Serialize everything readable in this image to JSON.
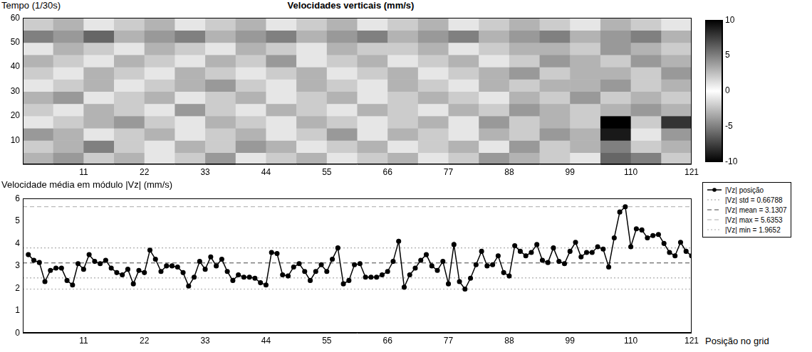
{
  "chart_data": [
    {
      "type": "heatmap",
      "title": "Velocidades verticais (mm/s)",
      "y_label": "Tempo (1/30s)",
      "xlim": [
        0,
        121
      ],
      "xticks": [
        11,
        22,
        33,
        44,
        55,
        66,
        77,
        88,
        99,
        110,
        121
      ],
      "ylim": [
        0,
        60
      ],
      "yticks": [
        10,
        20,
        30,
        40,
        50,
        60
      ],
      "x_edges": [
        0,
        5.5,
        11,
        16.5,
        22,
        27.5,
        33,
        38.5,
        44,
        49.5,
        55,
        60.5,
        66,
        71.5,
        77,
        82.5,
        88,
        93.5,
        99,
        104.5,
        110,
        115.5,
        121
      ],
      "y_edges": [
        0,
        5,
        10,
        15,
        20,
        25,
        30,
        35,
        40,
        45,
        50,
        55,
        60
      ],
      "cells": [
        [
          3,
          -4,
          2,
          -3,
          1,
          -2,
          4,
          -1,
          2,
          -3,
          1,
          -2,
          3,
          -1,
          2,
          -4,
          3,
          -2,
          1,
          -6,
          -5,
          2
        ],
        [
          -2,
          3,
          -5,
          2,
          -1,
          3,
          -2,
          4,
          -3,
          1,
          -2,
          3,
          -1,
          2,
          -3,
          1,
          -4,
          2,
          -3,
          -5,
          2,
          -3
        ],
        [
          4,
          -3,
          1,
          -2,
          3,
          -1,
          2,
          -3,
          1,
          -2,
          4,
          -1,
          3,
          -2,
          1,
          -3,
          2,
          -4,
          3,
          -9,
          1,
          -4
        ],
        [
          -1,
          2,
          -3,
          4,
          -2,
          1,
          -3,
          2,
          -1,
          3,
          -2,
          1,
          -2,
          3,
          -1,
          4,
          -2,
          3,
          -2,
          -10,
          2,
          -8
        ],
        [
          2,
          -1,
          3,
          -2,
          1,
          -4,
          2,
          -1,
          3,
          -2,
          1,
          -3,
          2,
          -1,
          3,
          -2,
          4,
          -3,
          2,
          3,
          -4,
          3
        ],
        [
          -3,
          4,
          -1,
          2,
          -3,
          1,
          -2,
          3,
          -1,
          2,
          -3,
          1,
          -2,
          3,
          -2,
          1,
          -3,
          2,
          -4,
          2,
          3,
          -2
        ],
        [
          1,
          -2,
          3,
          -1,
          2,
          -3,
          4,
          -2,
          1,
          -3,
          2,
          -1,
          3,
          -2,
          1,
          -3,
          2,
          -3,
          3,
          -4,
          2,
          -3
        ],
        [
          -2,
          1,
          -3,
          2,
          -1,
          3,
          -2,
          1,
          -2,
          3,
          -1,
          2,
          -3,
          1,
          -2,
          3,
          -4,
          2,
          -3,
          3,
          -2,
          4
        ],
        [
          3,
          -2,
          1,
          -3,
          2,
          -1,
          3,
          -2,
          4,
          -1,
          2,
          -3,
          1,
          -2,
          3,
          -1,
          2,
          -4,
          3,
          -2,
          4,
          -3
        ],
        [
          -1,
          3,
          -2,
          1,
          -3,
          2,
          -1,
          3,
          -2,
          1,
          -3,
          2,
          -2,
          3,
          -1,
          2,
          -3,
          3,
          -2,
          4,
          -3,
          2
        ],
        [
          -5,
          4,
          -6,
          3,
          -4,
          5,
          -3,
          4,
          -5,
          3,
          -4,
          5,
          -3,
          4,
          -5,
          3,
          -4,
          5,
          -3,
          4,
          -5,
          3
        ],
        [
          2,
          -3,
          1,
          -2,
          3,
          -1,
          2,
          -3,
          1,
          -2,
          3,
          -1,
          2,
          -3,
          1,
          -2,
          3,
          -2,
          1,
          -3,
          2,
          -1
        ]
      ],
      "colorbar": {
        "range": [
          -10,
          10
        ],
        "ticks": [
          -10,
          -5,
          0,
          5,
          10
        ]
      }
    },
    {
      "type": "line",
      "title": "Velocidade média em módulo |Vz| (mm/s)",
      "x_label": "Posição no grid",
      "xlim": [
        0,
        121
      ],
      "xticks": [
        11,
        22,
        33,
        44,
        55,
        66,
        77,
        88,
        99,
        110,
        121
      ],
      "ylim": [
        0,
        6
      ],
      "yticks": [
        0,
        1,
        2,
        3,
        4,
        5,
        6
      ],
      "grid": false,
      "legend": "right",
      "x": [
        1,
        2,
        3,
        4,
        5,
        6,
        7,
        8,
        9,
        10,
        11,
        12,
        13,
        14,
        15,
        16,
        17,
        18,
        19,
        20,
        21,
        22,
        23,
        24,
        25,
        26,
        27,
        28,
        29,
        30,
        31,
        32,
        33,
        34,
        35,
        36,
        37,
        38,
        39,
        40,
        41,
        42,
        43,
        44,
        45,
        46,
        47,
        48,
        49,
        50,
        51,
        52,
        53,
        54,
        55,
        56,
        57,
        58,
        59,
        60,
        61,
        62,
        63,
        64,
        65,
        66,
        67,
        68,
        69,
        70,
        71,
        72,
        73,
        74,
        75,
        76,
        77,
        78,
        79,
        80,
        81,
        82,
        83,
        84,
        85,
        86,
        87,
        88,
        89,
        90,
        91,
        92,
        93,
        94,
        95,
        96,
        97,
        98,
        99,
        100,
        101,
        102,
        103,
        104,
        105,
        106,
        107,
        108,
        109,
        110,
        111,
        112,
        113,
        114,
        115,
        116,
        117,
        118,
        119,
        120,
        121
      ],
      "series": [
        {
          "name": "|Vz| posição",
          "color": "#000000",
          "marker": "circle",
          "line_style": "solid",
          "values": [
            3.5,
            3.25,
            3.15,
            2.3,
            2.8,
            2.9,
            2.9,
            2.35,
            2.15,
            3.1,
            2.85,
            3.5,
            3.2,
            3.1,
            3.25,
            2.9,
            2.7,
            2.6,
            2.85,
            2.2,
            2.8,
            2.7,
            3.7,
            3.3,
            2.75,
            3.0,
            3.0,
            2.95,
            2.7,
            2.1,
            2.5,
            3.2,
            2.85,
            3.4,
            3.0,
            3.3,
            2.75,
            2.35,
            2.6,
            2.5,
            2.5,
            2.45,
            2.25,
            2.15,
            3.6,
            3.55,
            2.6,
            2.55,
            2.95,
            3.1,
            2.75,
            2.35,
            2.75,
            3.05,
            2.75,
            3.3,
            3.8,
            2.2,
            2.35,
            3.05,
            3.1,
            2.5,
            2.5,
            2.5,
            2.6,
            2.75,
            3.2,
            4.1,
            2.05,
            2.6,
            2.9,
            3.25,
            3.5,
            3.0,
            2.8,
            3.2,
            2.2,
            3.95,
            2.3,
            1.9652,
            2.45,
            3.05,
            3.65,
            3.0,
            3.05,
            3.45,
            2.7,
            2.55,
            3.9,
            3.65,
            3.45,
            3.6,
            3.95,
            3.25,
            3.15,
            3.8,
            3.2,
            3.1,
            3.65,
            4.05,
            3.4,
            3.6,
            3.6,
            3.85,
            3.75,
            2.95,
            4.25,
            5.4,
            5.6353,
            3.85,
            4.65,
            4.6,
            4.25,
            4.35,
            4.4,
            4.0,
            3.6,
            3.45,
            4.05,
            3.65,
            3.45
          ]
        }
      ],
      "reference_lines": [
        {
          "name": "|Vz| std = 0.66788",
          "color": "#999999",
          "line_style": "dotted",
          "y": [
            3.79858,
            2.46282
          ]
        },
        {
          "name": "|Vz| mean = 3.1307",
          "color": "#444444",
          "line_style": "dashed",
          "y": [
            3.1307
          ]
        },
        {
          "name": "|Vz| max = 5.6353",
          "color": "#aaaaaa",
          "line_style": "dashed",
          "y": [
            5.6353
          ]
        },
        {
          "name": "|Vz| min = 1.9652",
          "color": "#aaaaaa",
          "line_style": "dotted",
          "y": [
            1.9652
          ]
        }
      ]
    }
  ]
}
